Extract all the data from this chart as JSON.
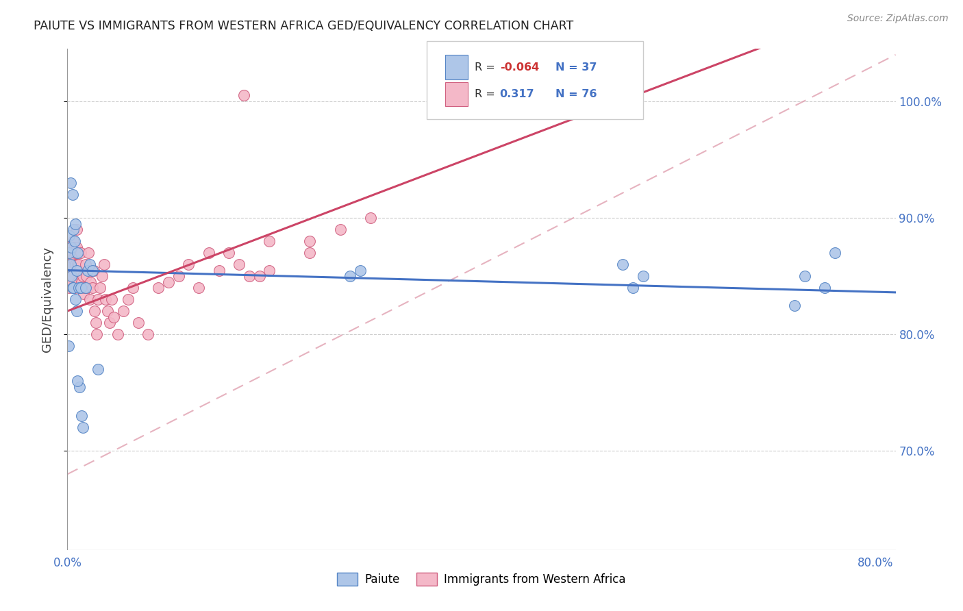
{
  "title": "PAIUTE VS IMMIGRANTS FROM WESTERN AFRICA GED/EQUIVALENCY CORRELATION CHART",
  "source": "Source: ZipAtlas.com",
  "ylabel": "GED/Equivalency",
  "xlim": [
    0.0,
    0.82
  ],
  "ylim": [
    0.615,
    1.045
  ],
  "yticks": [
    0.7,
    0.8,
    0.9,
    1.0
  ],
  "ytick_labels": [
    "70.0%",
    "80.0%",
    "90.0%",
    "100.0%"
  ],
  "color_blue_fill": "#aec6e8",
  "color_blue_edge": "#5585c5",
  "color_pink_fill": "#f4b8c8",
  "color_pink_edge": "#d06080",
  "color_blue_line": "#4472c4",
  "color_pink_line": "#cc4466",
  "color_diag_line": "#e0a0b0",
  "background": "#ffffff",
  "paiute_x": [
    0.002,
    0.005,
    0.003,
    0.001,
    0.004,
    0.003,
    0.002,
    0.006,
    0.004,
    0.005,
    0.008,
    0.007,
    0.009,
    0.006,
    0.01,
    0.009,
    0.011,
    0.008,
    0.012,
    0.01,
    0.014,
    0.015,
    0.013,
    0.02,
    0.022,
    0.018,
    0.025,
    0.03,
    0.28,
    0.29,
    0.55,
    0.56,
    0.57,
    0.72,
    0.73,
    0.75,
    0.76
  ],
  "paiute_y": [
    0.87,
    0.92,
    0.93,
    0.79,
    0.875,
    0.86,
    0.885,
    0.89,
    0.85,
    0.84,
    0.895,
    0.88,
    0.855,
    0.84,
    0.87,
    0.82,
    0.84,
    0.83,
    0.755,
    0.76,
    0.73,
    0.72,
    0.84,
    0.855,
    0.86,
    0.84,
    0.855,
    0.77,
    0.85,
    0.855,
    0.86,
    0.84,
    0.85,
    0.825,
    0.85,
    0.84,
    0.87
  ],
  "africa_x": [
    0.001,
    0.002,
    0.003,
    0.001,
    0.002,
    0.003,
    0.004,
    0.002,
    0.003,
    0.004,
    0.005,
    0.004,
    0.006,
    0.005,
    0.007,
    0.006,
    0.008,
    0.007,
    0.009,
    0.008,
    0.01,
    0.009,
    0.011,
    0.01,
    0.012,
    0.011,
    0.013,
    0.014,
    0.015,
    0.016,
    0.017,
    0.018,
    0.019,
    0.02,
    0.021,
    0.022,
    0.023,
    0.024,
    0.025,
    0.026,
    0.027,
    0.028,
    0.029,
    0.03,
    0.032,
    0.034,
    0.036,
    0.038,
    0.04,
    0.042,
    0.044,
    0.046,
    0.05,
    0.055,
    0.06,
    0.065,
    0.07,
    0.08,
    0.09,
    0.1,
    0.11,
    0.12,
    0.13,
    0.14,
    0.15,
    0.16,
    0.17,
    0.18,
    0.19,
    0.2,
    0.24,
    0.27,
    0.3,
    0.24,
    0.2,
    0.175
  ],
  "africa_y": [
    0.875,
    0.87,
    0.86,
    0.855,
    0.84,
    0.85,
    0.87,
    0.865,
    0.845,
    0.855,
    0.87,
    0.86,
    0.88,
    0.85,
    0.875,
    0.865,
    0.86,
    0.84,
    0.89,
    0.87,
    0.86,
    0.875,
    0.855,
    0.845,
    0.84,
    0.86,
    0.87,
    0.845,
    0.85,
    0.835,
    0.84,
    0.86,
    0.85,
    0.84,
    0.87,
    0.83,
    0.845,
    0.855,
    0.84,
    0.855,
    0.82,
    0.81,
    0.8,
    0.83,
    0.84,
    0.85,
    0.86,
    0.83,
    0.82,
    0.81,
    0.83,
    0.815,
    0.8,
    0.82,
    0.83,
    0.84,
    0.81,
    0.8,
    0.84,
    0.845,
    0.85,
    0.86,
    0.84,
    0.87,
    0.855,
    0.87,
    0.86,
    0.85,
    0.85,
    0.88,
    0.88,
    0.89,
    0.9,
    0.87,
    0.855,
    1.005
  ]
}
